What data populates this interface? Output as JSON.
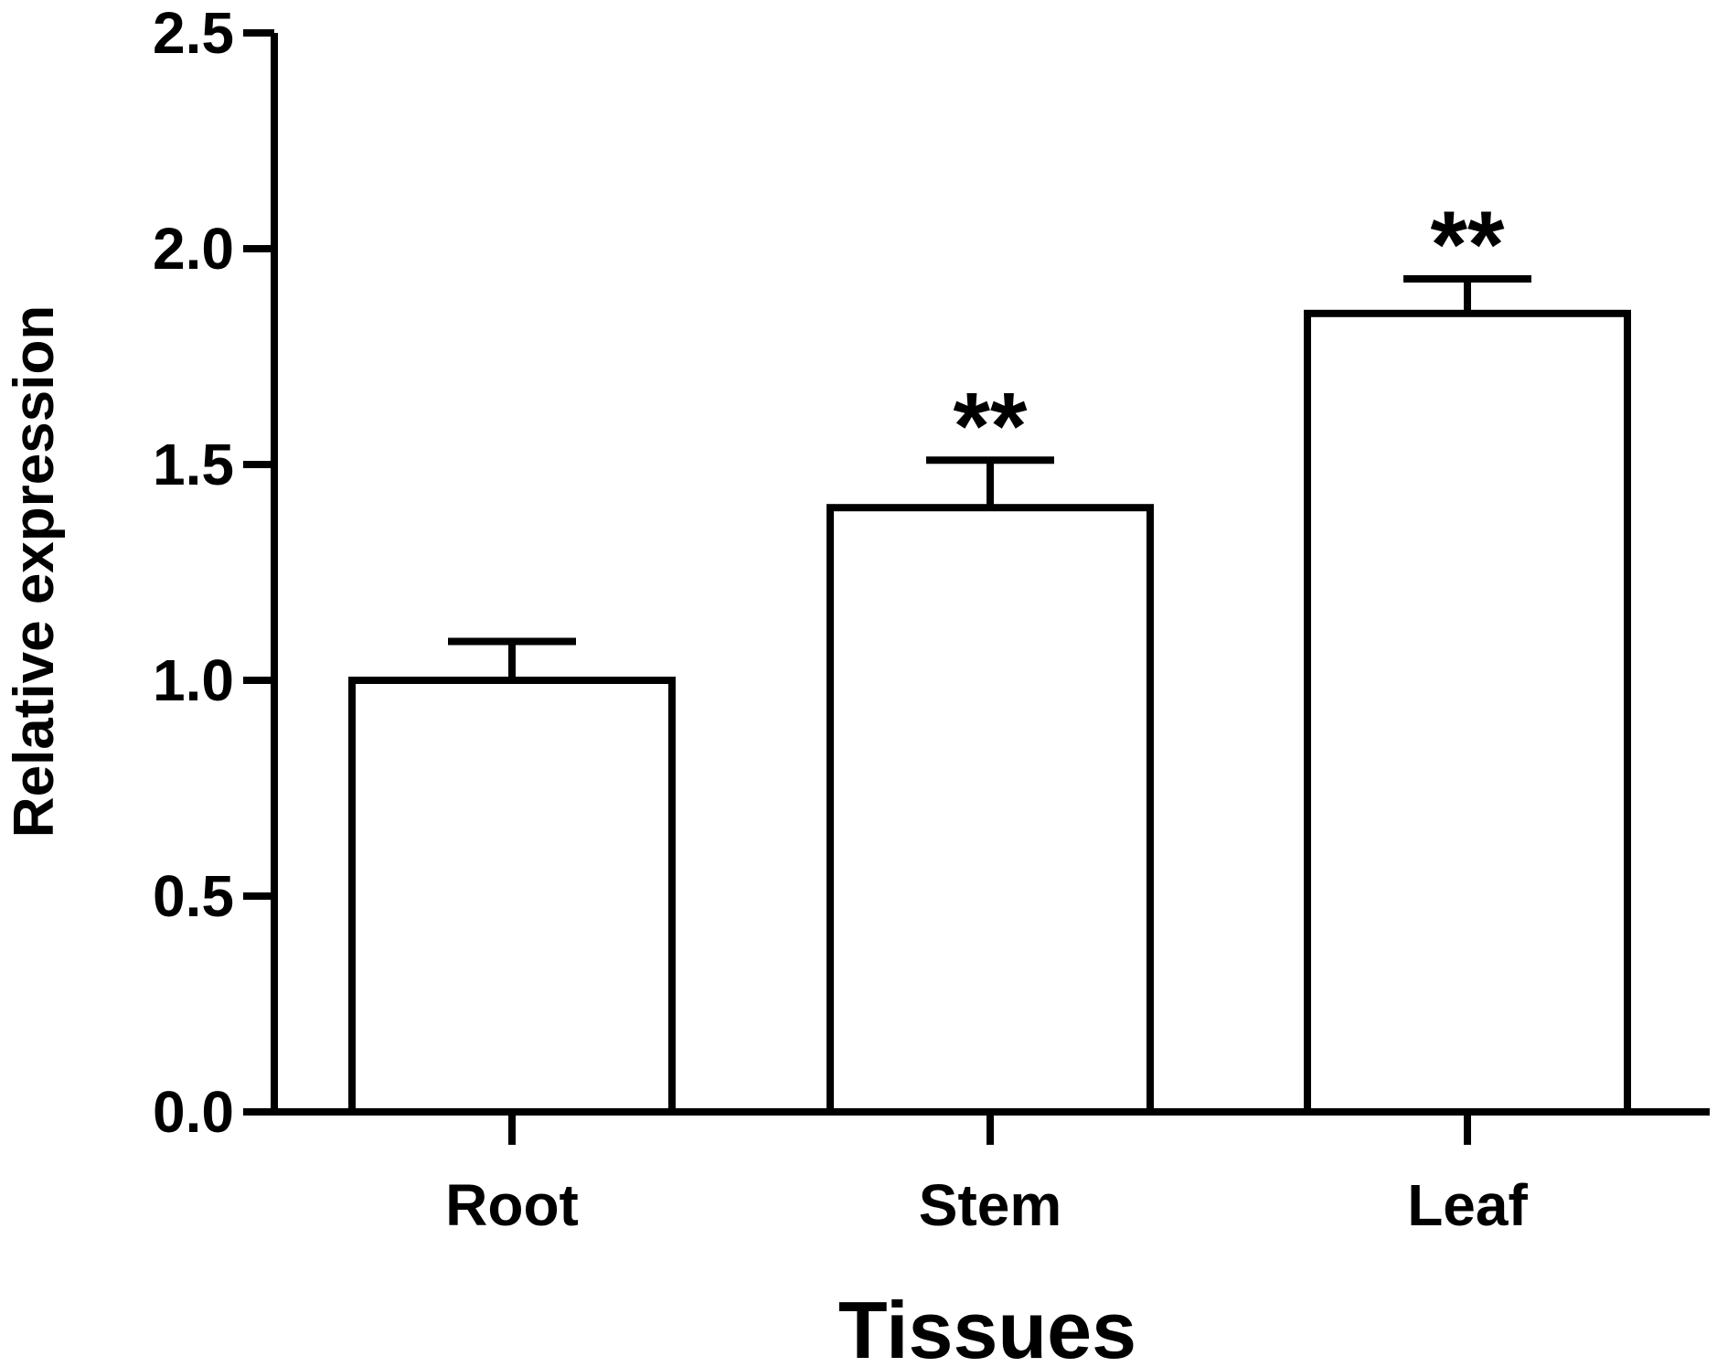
{
  "chart_data": {
    "type": "bar",
    "title": "",
    "xlabel": "Tissues",
    "ylabel": "Relative expression",
    "categories": [
      "Root",
      "Stem",
      "Leaf"
    ],
    "values": [
      1.0,
      1.4,
      1.85
    ],
    "error_bars": [
      0.09,
      0.11,
      0.08
    ],
    "significance": [
      "",
      "**",
      "**"
    ],
    "ylim": [
      0,
      2.5
    ],
    "yticks": [
      "0.0",
      "0.5",
      "1.0",
      "1.5",
      "2.0",
      "2.5"
    ],
    "grid": false,
    "legend": "none",
    "colors": {
      "bar_fill": "#ffffff",
      "bar_stroke": "#000000",
      "axis": "#000000"
    }
  }
}
